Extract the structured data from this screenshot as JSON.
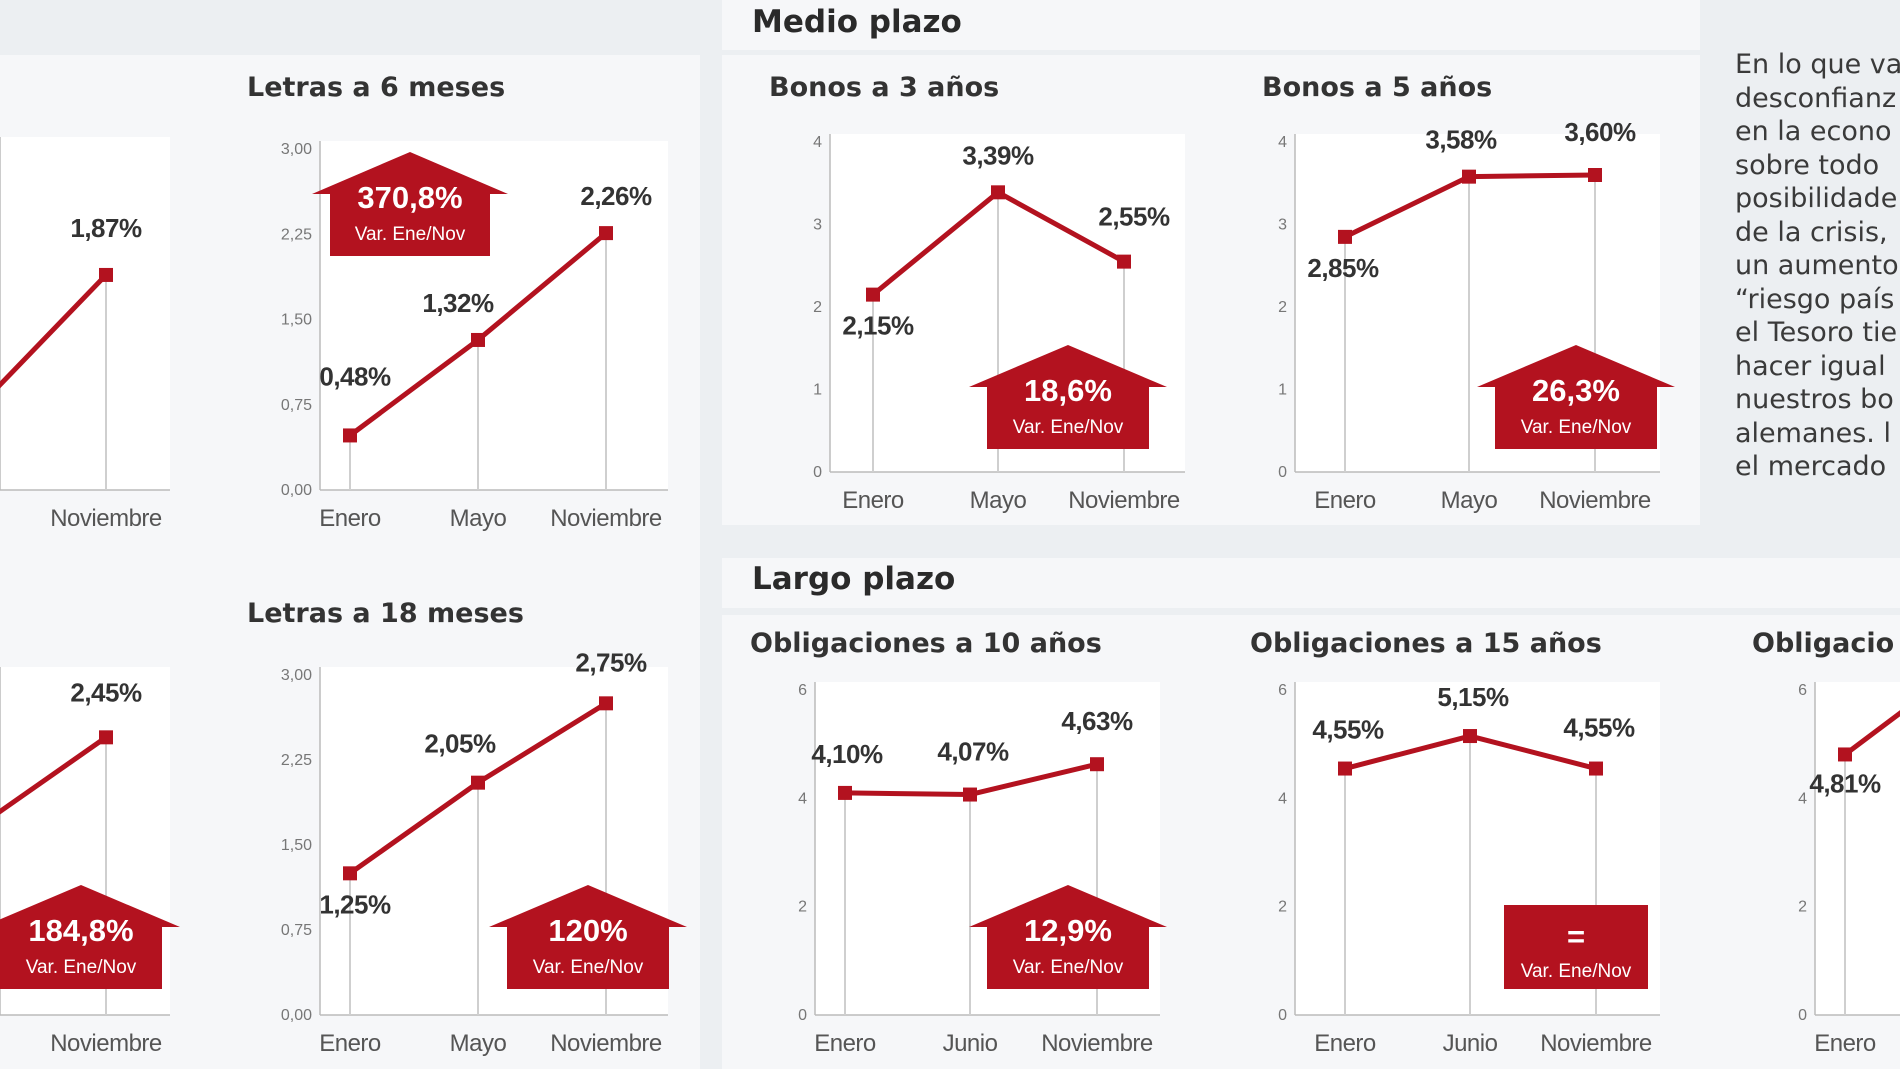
{
  "sections": {
    "medio": "Medio plazo",
    "largo": "Largo plazo"
  },
  "side_text": [
    "En lo que va",
    "desconfianz",
    "en la econo",
    "sobre todo",
    "posibilidade",
    "de la crisis,",
    "un aumento",
    "“riesgo país",
    "el Tesoro tie",
    "hacer igual",
    "nuestros bo",
    "alemanes. l",
    "el mercado"
  ],
  "colors": {
    "accent": "#b3121f",
    "panel": "#f6f7f9",
    "plot": "#ffffff",
    "background": "#eceff2"
  },
  "chart_data": [
    {
      "id": "letras3",
      "type": "line",
      "title": "",
      "categories": [
        "",
        "Noviembre"
      ],
      "values": [
        null,
        1.87
      ],
      "value_labels": [
        "",
        "1,87%"
      ],
      "yticks": [],
      "ylim": [
        0,
        3.0
      ],
      "badge": null
    },
    {
      "id": "letras6",
      "type": "line",
      "title": "Letras a 6 meses",
      "categories": [
        "Enero",
        "Mayo",
        "Noviembre"
      ],
      "values": [
        0.48,
        1.32,
        2.26
      ],
      "value_labels": [
        "0,48%",
        "1,32%",
        "2,26%"
      ],
      "yticks": [
        0.0,
        0.75,
        1.5,
        2.25,
        3.0
      ],
      "ytick_labels": [
        "0,00",
        "0,75",
        "1,50",
        "2,25",
        "3,00"
      ],
      "ylim": [
        0,
        3.0
      ],
      "badge": {
        "value": "370,8%",
        "sub": "Var. Ene/Nov",
        "shape": "house"
      }
    },
    {
      "id": "bonos3",
      "type": "line",
      "title": "Bonos a 3 años",
      "categories": [
        "Enero",
        "Mayo",
        "Noviembre"
      ],
      "values": [
        2.15,
        3.39,
        2.55
      ],
      "value_labels": [
        "2,15%",
        "3,39%",
        "2,55%"
      ],
      "yticks": [
        0,
        1,
        2,
        3,
        4
      ],
      "ytick_labels": [
        "0",
        "1",
        "2",
        "3",
        "4"
      ],
      "ylim": [
        0,
        4
      ],
      "badge": {
        "value": "18,6%",
        "sub": "Var. Ene/Nov",
        "shape": "house"
      }
    },
    {
      "id": "bonos5",
      "type": "line",
      "title": "Bonos a 5 años",
      "categories": [
        "Enero",
        "Mayo",
        "Noviembre"
      ],
      "values": [
        2.85,
        3.58,
        3.6
      ],
      "value_labels": [
        "2,85%",
        "3,58%",
        "3,60%"
      ],
      "yticks": [
        0,
        1,
        2,
        3,
        4
      ],
      "ytick_labels": [
        "0",
        "1",
        "2",
        "3",
        "4"
      ],
      "ylim": [
        0,
        4
      ],
      "badge": {
        "value": "26,3%",
        "sub": "Var. Ene/Nov",
        "shape": "house"
      }
    },
    {
      "id": "letras12",
      "type": "line",
      "title": "",
      "categories": [
        "",
        "Noviembre"
      ],
      "values": [
        null,
        2.45
      ],
      "value_labels": [
        "",
        "2,45%"
      ],
      "yticks": [],
      "ylim": [
        0,
        3.0
      ],
      "badge": {
        "value": "184,8%",
        "sub": "Var. Ene/Nov",
        "shape": "house"
      }
    },
    {
      "id": "letras18",
      "type": "line",
      "title": "Letras a 18 meses",
      "categories": [
        "Enero",
        "Mayo",
        "Noviembre"
      ],
      "values": [
        1.25,
        2.05,
        2.75
      ],
      "value_labels": [
        "1,25%",
        "2,05%",
        "2,75%"
      ],
      "yticks": [
        0.0,
        0.75,
        1.5,
        2.25,
        3.0
      ],
      "ytick_labels": [
        "0,00",
        "0,75",
        "1,50",
        "2,25",
        "3,00"
      ],
      "ylim": [
        0,
        3.0
      ],
      "badge": {
        "value": "120%",
        "sub": "Var. Ene/Nov",
        "shape": "house"
      }
    },
    {
      "id": "oblig10",
      "type": "line",
      "title": "Obligaciones a 10 años",
      "categories": [
        "Enero",
        "Junio",
        "Noviembre"
      ],
      "values": [
        4.1,
        4.07,
        4.63
      ],
      "value_labels": [
        "4,10%",
        "4,07%",
        "4,63%"
      ],
      "yticks": [
        0,
        2,
        4,
        6
      ],
      "ytick_labels": [
        "0",
        "2",
        "4",
        "6"
      ],
      "ylim": [
        0,
        6
      ],
      "badge": {
        "value": "12,9%",
        "sub": "Var. Ene/Nov",
        "shape": "house"
      }
    },
    {
      "id": "oblig15",
      "type": "line",
      "title": "Obligaciones a 15 años",
      "categories": [
        "Enero",
        "Junio",
        "Noviembre"
      ],
      "values": [
        4.55,
        5.15,
        4.55
      ],
      "value_labels": [
        "4,55%",
        "5,15%",
        "4,55%"
      ],
      "yticks": [
        0,
        2,
        4,
        6
      ],
      "ytick_labels": [
        "0",
        "2",
        "4",
        "6"
      ],
      "ylim": [
        0,
        6
      ],
      "badge": {
        "value": "=",
        "sub": "Var. Ene/Nov",
        "shape": "box"
      }
    },
    {
      "id": "oblig30",
      "type": "line",
      "title": "Obligacio",
      "categories": [
        "Enero"
      ],
      "values": [
        4.81
      ],
      "value_labels": [
        "4,81%"
      ],
      "yticks": [
        0,
        2,
        4,
        6
      ],
      "ytick_labels": [
        "0",
        "2",
        "4",
        "6"
      ],
      "ylim": [
        0,
        6
      ],
      "badge": null
    }
  ]
}
